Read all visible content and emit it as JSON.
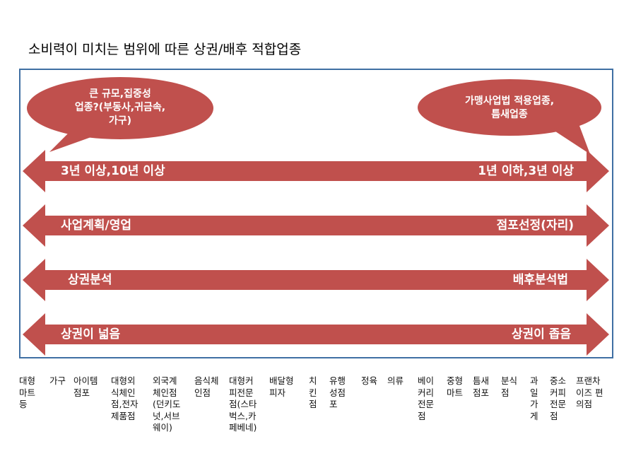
{
  "title": "소비력이 미치는 범위에 따른 상권/배후 적합업종",
  "colors": {
    "shape": "#c0504d",
    "frame": "#3f6fa3",
    "text": "#ffffff"
  },
  "bubbles": {
    "left": "큰 규모,집중성\n업종?(부동사,귀금속,\n가구)",
    "right": "가맹사업법 적용업종,\n틈새업종"
  },
  "arrows": [
    {
      "left": "3년 이상,10년 이상",
      "right": "1년 이하,3년 이상"
    },
    {
      "left": "사업계획/영업",
      "right": "점포선정(자리)"
    },
    {
      "left": "상권분석",
      "right": "배후분석법"
    },
    {
      "left": "상권이 넓음",
      "right": "상권이 좁음"
    }
  ],
  "categories": [
    "대형\n마트\n등",
    "가구",
    "아이템\n점포",
    "대형외\n식체인\n점,전자\n제품점",
    "외국계\n체인점\n(던키도\n넛,서브\n웨이)",
    "음식체\n인점",
    "대형커\n피전문\n점(스타\n벅스,카\n페베네)",
    "배달형\n피자",
    "치\n킨\n점",
    "유행\n성점\n포",
    "정육",
    "의류",
    "베이\n커리\n전문\n점",
    "중형\n마트",
    "틈새\n점포",
    "분식\n점",
    "과\n일\n가\n게",
    "중소\n커피\n전문\n점",
    "프랜차\n이즈 편\n의점"
  ]
}
